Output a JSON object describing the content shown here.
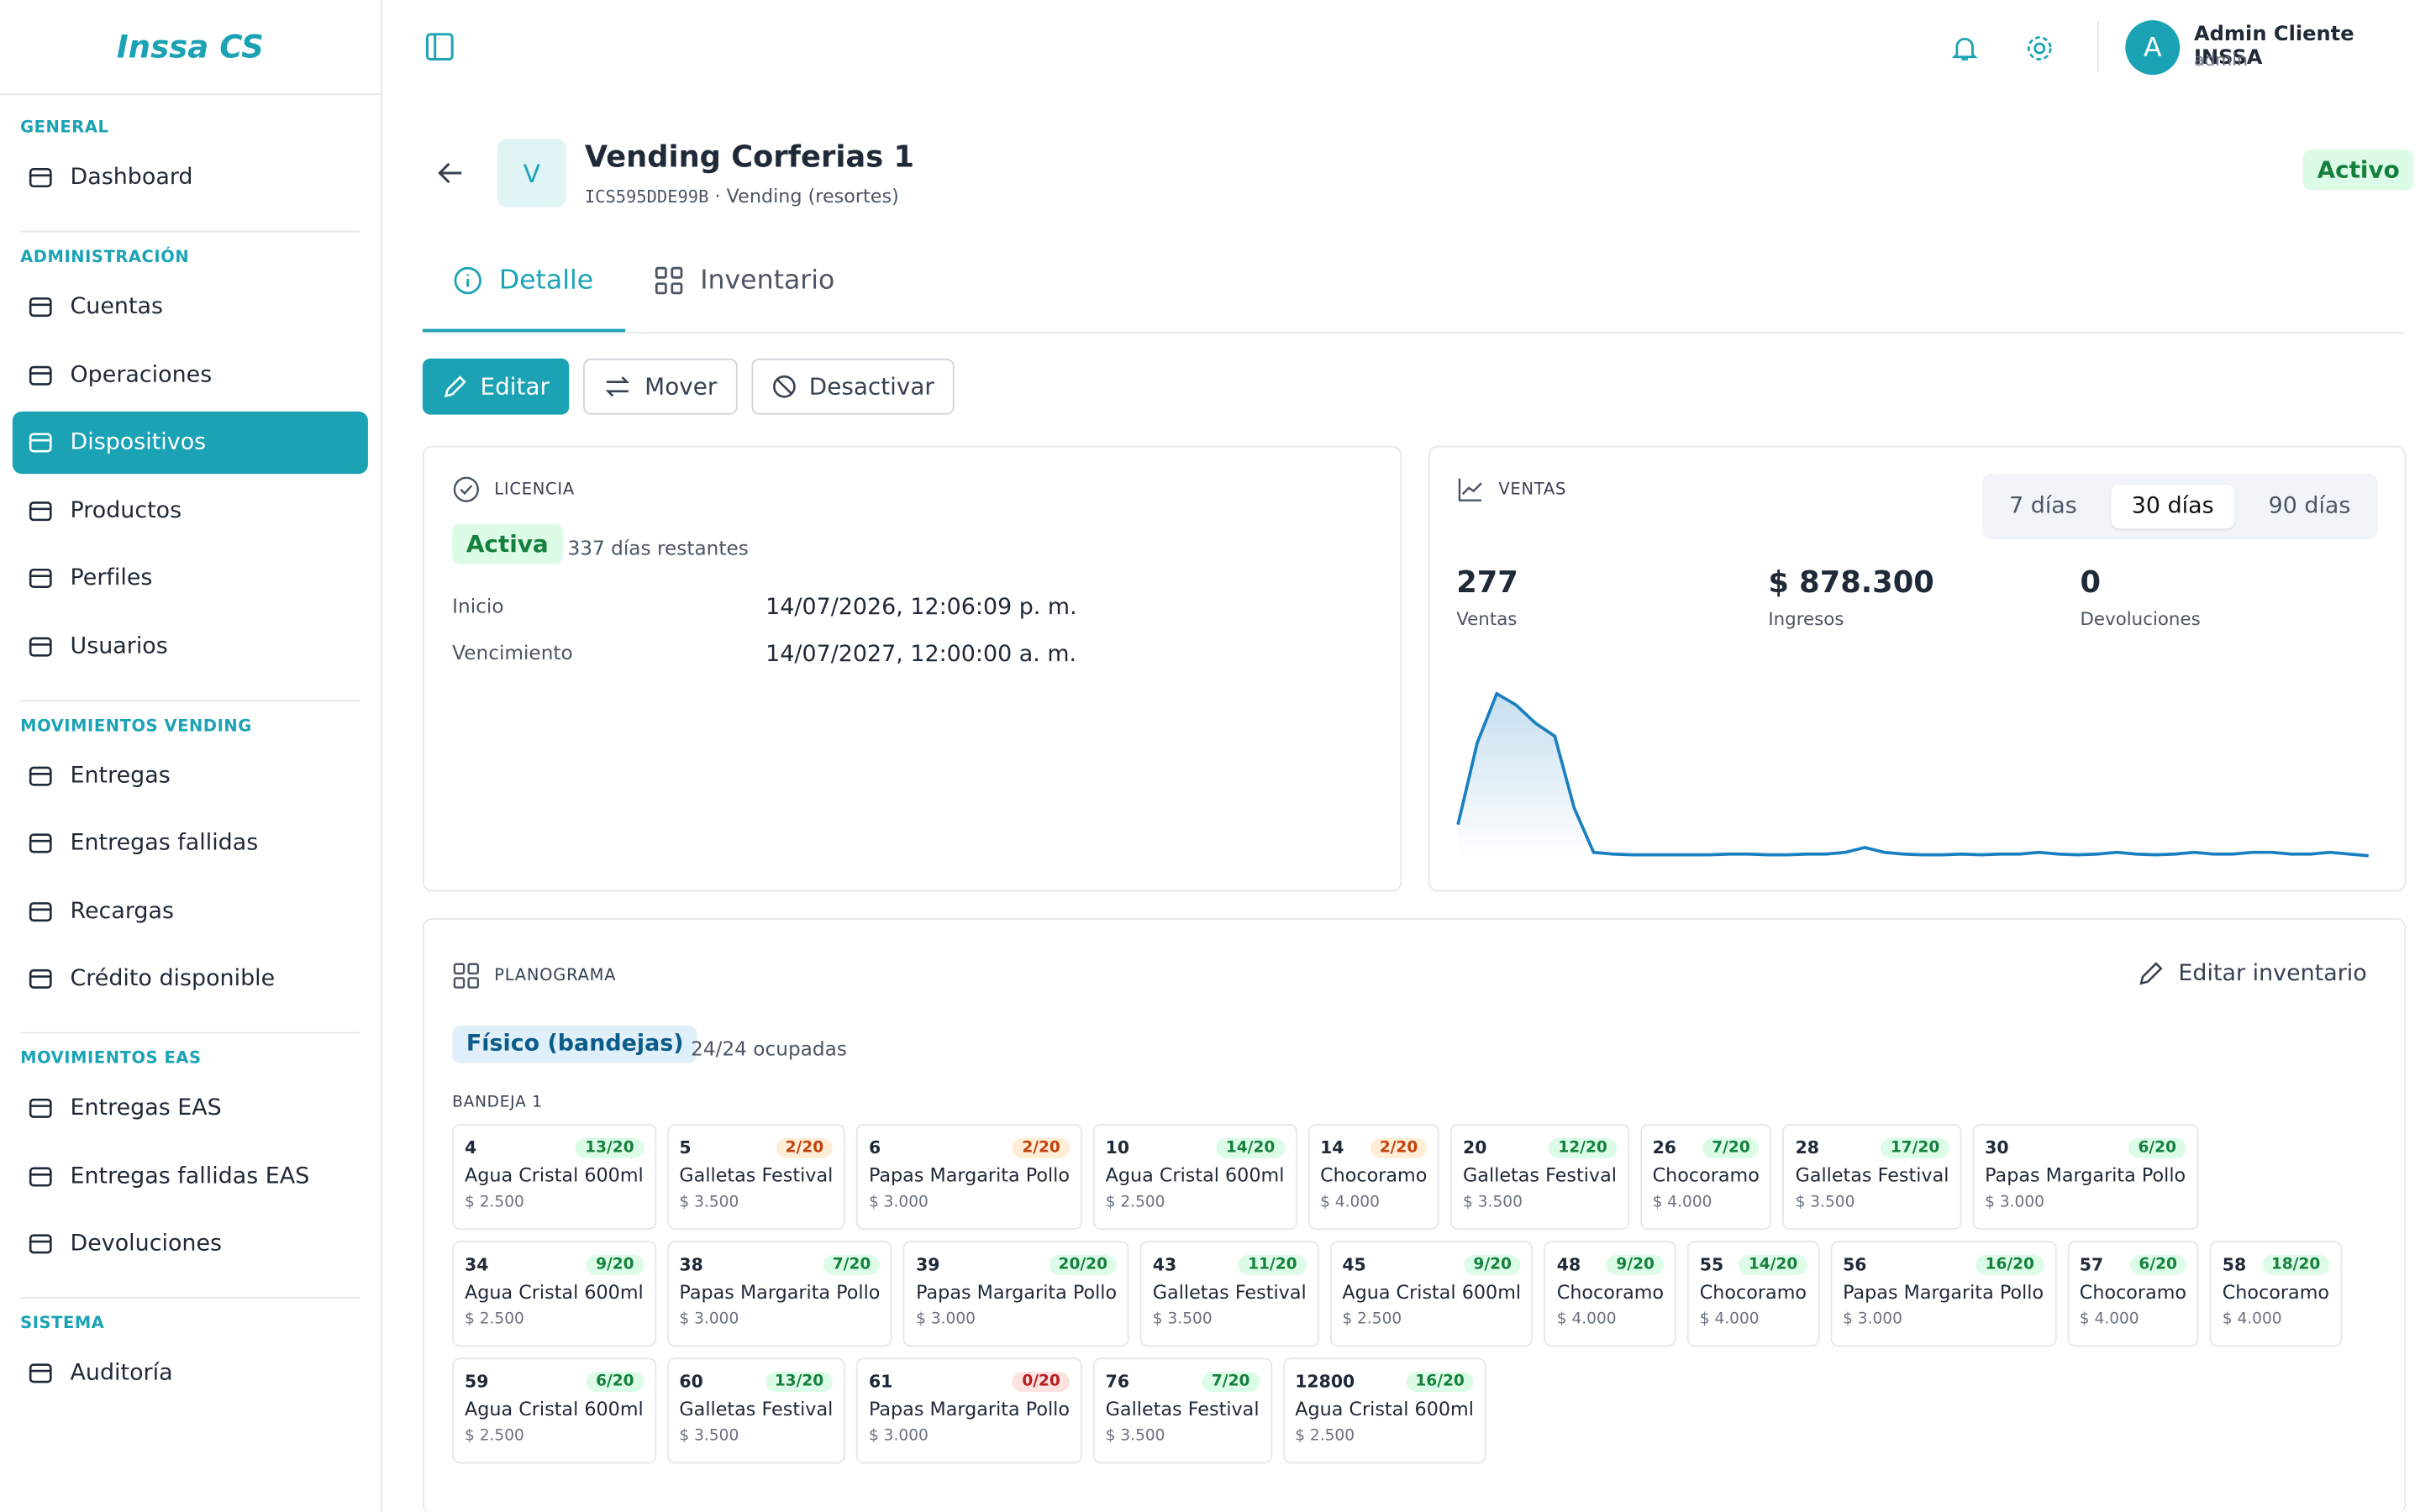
{
  "logo": {
    "name": "Inssa",
    "suffix": "CS"
  },
  "sidebar": [
    {
      "title": "GENERAL",
      "items": [
        "Dashboard"
      ]
    },
    {
      "title": "ADMINISTRACIÓN",
      "items": [
        "Cuentas",
        "Operaciones",
        "Dispositivos",
        "Productos",
        "Perfiles",
        "Usuarios"
      ]
    },
    {
      "title": "MOVIMIENTOS VENDING",
      "items": [
        "Entregas",
        "Entregas fallidas",
        "Recargas",
        "Crédito disponible"
      ]
    },
    {
      "title": "MOVIMIENTOS EAS",
      "items": [
        "Entregas EAS",
        "Entregas fallidas EAS",
        "Devoluciones"
      ]
    },
    {
      "title": "SISTEMA",
      "items": [
        "Auditoría"
      ]
    }
  ],
  "active_item": "Dispositivos",
  "user": {
    "avatar": "A",
    "name": "Admin Cliente INSSA",
    "role": "admin"
  },
  "device": {
    "avatar": "V",
    "name": "Vending Corferias 1",
    "code": "ICS595DDE99B",
    "type": "Vending (resortes)",
    "status": "Activo"
  },
  "tabs": [
    "Detalle",
    "Inventario"
  ],
  "actions": [
    "Editar",
    "Mover",
    "Desactivar"
  ],
  "license": {
    "title": "LICENCIA",
    "status": "Activa",
    "remaining": "337 días restantes",
    "rows": [
      [
        "Inicio",
        "14/07/2026, 12:06:09 p. m."
      ],
      [
        "Vencimiento",
        "14/07/2027, 12:00:00 a. m."
      ]
    ]
  },
  "sales": {
    "title": "VENTAS",
    "ranges": [
      "7 días",
      "30 días",
      "90 días"
    ],
    "selected": 1,
    "stats": [
      {
        "value": "277",
        "label": "Ventas"
      },
      {
        "value": "$ 878.300",
        "label": "Ingresos"
      },
      {
        "value": "0",
        "label": "Devoluciones"
      }
    ],
    "chart": {
      "type": "line",
      "color": "#1a7fc0",
      "values": [
        20,
        70,
        100,
        93,
        82,
        74,
        30,
        3,
        2,
        1.5,
        1.5,
        1.5,
        1.5,
        1.5,
        2,
        2,
        1.5,
        1.5,
        2,
        2,
        3,
        6,
        3,
        2,
        1.5,
        1.5,
        2,
        1.5,
        2,
        2,
        3,
        2,
        1.5,
        2,
        3,
        2,
        1.5,
        2,
        3,
        2,
        2,
        3,
        3,
        2,
        2,
        3,
        2,
        1
      ]
    }
  },
  "planogram": {
    "title": "PLANOGRAMA",
    "edit": "Editar inventario",
    "mode": "Físico (bandejas)",
    "occupancy": "24/24 ocupadas",
    "tray": "BANDEJA 1",
    "slots": [
      {
        "id": "4",
        "stock": "13/20",
        "color": "green",
        "product": "Agua Cristal 600ml",
        "price": "$ 2.500"
      },
      {
        "id": "5",
        "stock": "2/20",
        "color": "orange",
        "product": "Galletas Festival",
        "price": "$ 3.500"
      },
      {
        "id": "6",
        "stock": "2/20",
        "color": "orange",
        "product": "Papas Margarita Pollo",
        "price": "$ 3.000"
      },
      {
        "id": "10",
        "stock": "14/20",
        "color": "green",
        "product": "Agua Cristal 600ml",
        "price": "$ 2.500"
      },
      {
        "id": "14",
        "stock": "2/20",
        "color": "orange",
        "product": "Chocoramo",
        "price": "$ 4.000"
      },
      {
        "id": "20",
        "stock": "12/20",
        "color": "green",
        "product": "Galletas Festival",
        "price": "$ 3.500"
      },
      {
        "id": "26",
        "stock": "7/20",
        "color": "green",
        "product": "Chocoramo",
        "price": "$ 4.000"
      },
      {
        "id": "28",
        "stock": "17/20",
        "color": "green",
        "product": "Galletas Festival",
        "price": "$ 3.500"
      },
      {
        "id": "30",
        "stock": "6/20",
        "color": "green",
        "product": "Papas Margarita Pollo",
        "price": "$ 3.000"
      },
      {
        "id": "34",
        "stock": "9/20",
        "color": "green",
        "product": "Agua Cristal 600ml",
        "price": "$ 2.500"
      },
      {
        "id": "38",
        "stock": "7/20",
        "color": "green",
        "product": "Papas Margarita Pollo",
        "price": "$ 3.000"
      },
      {
        "id": "39",
        "stock": "20/20",
        "color": "green",
        "product": "Papas Margarita Pollo",
        "price": "$ 3.000"
      },
      {
        "id": "43",
        "stock": "11/20",
        "color": "green",
        "product": "Galletas Festival",
        "price": "$ 3.500"
      },
      {
        "id": "45",
        "stock": "9/20",
        "color": "green",
        "product": "Agua Cristal 600ml",
        "price": "$ 2.500"
      },
      {
        "id": "48",
        "stock": "9/20",
        "color": "green",
        "product": "Chocoramo",
        "price": "$ 4.000"
      },
      {
        "id": "55",
        "stock": "14/20",
        "color": "green",
        "product": "Chocoramo",
        "price": "$ 4.000"
      },
      {
        "id": "56",
        "stock": "16/20",
        "color": "green",
        "product": "Papas Margarita Pollo",
        "price": "$ 3.000"
      },
      {
        "id": "57",
        "stock": "6/20",
        "color": "green",
        "product": "Chocoramo",
        "price": "$ 4.000"
      },
      {
        "id": "58",
        "stock": "18/20",
        "color": "green",
        "product": "Chocoramo",
        "price": "$ 4.000"
      },
      {
        "id": "59",
        "stock": "6/20",
        "color": "green",
        "product": "Agua Cristal 600ml",
        "price": "$ 2.500"
      },
      {
        "id": "60",
        "stock": "13/20",
        "color": "green",
        "product": "Galletas Festival",
        "price": "$ 3.500"
      },
      {
        "id": "61",
        "stock": "0/20",
        "color": "red",
        "product": "Papas Margarita Pollo",
        "price": "$ 3.000"
      },
      {
        "id": "76",
        "stock": "7/20",
        "color": "green",
        "product": "Galletas Festival",
        "price": "$ 3.500"
      },
      {
        "id": "12800",
        "stock": "16/20",
        "color": "green",
        "product": "Agua Cristal 600ml",
        "price": "$ 2.500"
      }
    ]
  }
}
